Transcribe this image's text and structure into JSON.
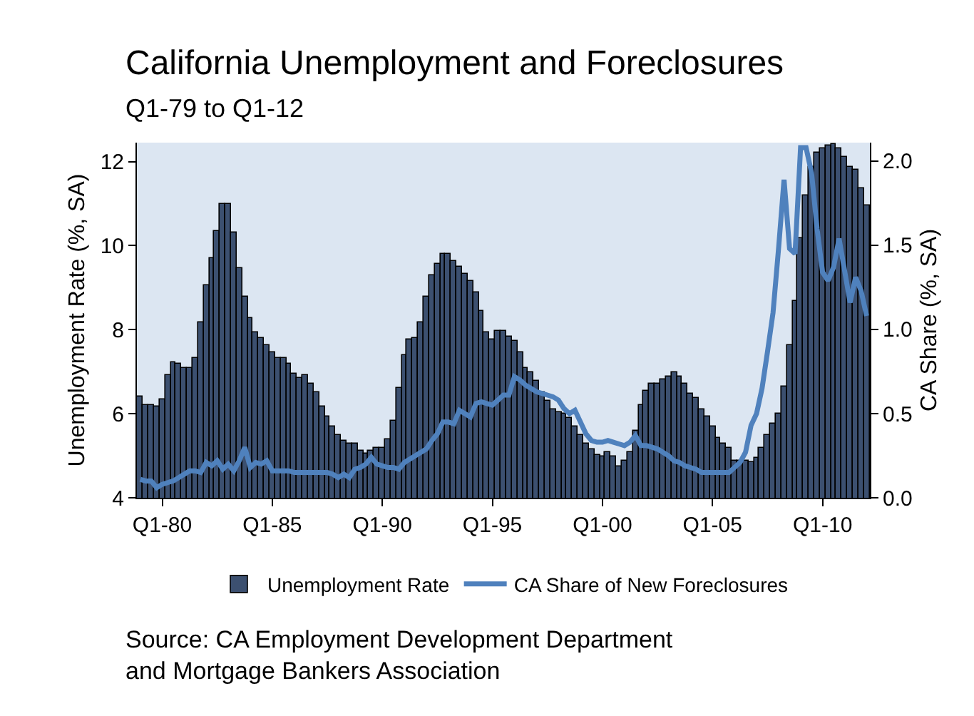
{
  "chart_data": {
    "type": "bar",
    "title": "California Unemployment and Foreclosures",
    "subtitle": "Q1-79 to Q1-12",
    "ylabel": "Unemployment Rate (%, SA)",
    "y2label": "CA Share (%, SA)",
    "categories": [
      null,
      null,
      null,
      null,
      "Q1-80",
      null,
      null,
      null,
      null,
      null,
      null,
      null,
      null,
      null,
      null,
      null,
      null,
      null,
      null,
      null,
      null,
      null,
      null,
      null,
      "Q1-85",
      null,
      null,
      null,
      null,
      null,
      null,
      null,
      null,
      null,
      null,
      null,
      null,
      null,
      null,
      null,
      null,
      null,
      null,
      null,
      "Q1-90",
      null,
      null,
      null,
      null,
      null,
      null,
      null,
      null,
      null,
      null,
      null,
      null,
      null,
      null,
      null,
      null,
      null,
      null,
      null,
      "Q1-95",
      null,
      null,
      null,
      null,
      null,
      null,
      null,
      null,
      null,
      null,
      null,
      null,
      null,
      null,
      null,
      null,
      null,
      null,
      null,
      "Q1-00",
      null,
      null,
      null,
      null,
      null,
      null,
      null,
      null,
      null,
      null,
      null,
      null,
      null,
      null,
      null,
      null,
      null,
      null,
      null,
      "Q1-05",
      null,
      null,
      null,
      null,
      null,
      null,
      null,
      null,
      null,
      null,
      null,
      null,
      null,
      null,
      null,
      null,
      null,
      null,
      null,
      "Q1-10",
      null,
      null,
      null,
      null,
      null,
      null,
      null,
      null
    ],
    "ylim": [
      4,
      12.45
    ],
    "yticks": [
      4,
      6,
      8,
      10,
      12
    ],
    "y2lim": [
      0,
      2.11
    ],
    "y2ticks": [
      {
        "value": 0,
        "label": "0.0"
      },
      {
        "value": 0.5,
        "label": "0.5"
      },
      {
        "value": 1,
        "label": "1.0"
      },
      {
        "value": 1.5,
        "label": "1.5"
      },
      {
        "value": 2,
        "label": "2.0"
      }
    ],
    "series": [
      {
        "name": "Unemployment Rate",
        "color": "#3c5070",
        "values": [
          6.41,
          6.21,
          6.21,
          6.18,
          6.35,
          6.92,
          7.23,
          7.18,
          7.1,
          7.1,
          7.31,
          8.17,
          9.07,
          9.7,
          10.33,
          10.98,
          10.98,
          10.3,
          9.48,
          8.77,
          8.26,
          7.92,
          7.8,
          7.63,
          7.46,
          7.31,
          7.31,
          7.2,
          6.95,
          6.86,
          6.92,
          6.72,
          6.5,
          6.18,
          5.93,
          5.7,
          5.48,
          5.36,
          5.3,
          5.3,
          5.13,
          5.04,
          5.13,
          5.19,
          5.19,
          5.4,
          5.84,
          6.61,
          7.4,
          7.77,
          7.8,
          8.18,
          8.8,
          9.28,
          9.58,
          9.81,
          9.81,
          9.64,
          9.5,
          9.33,
          9.16,
          8.88,
          8.45,
          7.95,
          7.77,
          7.97,
          7.97,
          7.84,
          7.72,
          7.46,
          7.1,
          6.99,
          6.78,
          6.5,
          6.3,
          6.1,
          6.04,
          5.99,
          5.91,
          5.7,
          5.48,
          5.3,
          5.16,
          5.02,
          5.0,
          5.08,
          5.0,
          4.76,
          4.87,
          5.08,
          5.59,
          6.21,
          6.55,
          6.7,
          6.7,
          6.81,
          6.89,
          6.97,
          6.89,
          6.7,
          6.49,
          6.38,
          6.1,
          5.93,
          5.7,
          5.41,
          5.3,
          5.19,
          4.87,
          4.87,
          4.87,
          4.85,
          4.96,
          5.19,
          5.5,
          5.76,
          6.0,
          6.66,
          7.63,
          8.7,
          10.18,
          11.2,
          11.88,
          12.22,
          12.33,
          12.37,
          12.41,
          12.33,
          12.1,
          11.88,
          11.82,
          11.37,
          10.97
        ]
      },
      {
        "name": "CA Share of New Foreclosures",
        "type": "line",
        "axis": "y2",
        "color": "#4f81bd",
        "values": [
          0.11,
          0.1,
          0.1,
          0.06,
          0.08,
          0.09,
          0.1,
          0.12,
          0.14,
          0.16,
          0.16,
          0.15,
          0.21,
          0.19,
          0.22,
          0.17,
          0.2,
          0.16,
          0.22,
          0.3,
          0.18,
          0.21,
          0.2,
          0.22,
          0.16,
          0.16,
          0.16,
          0.16,
          0.15,
          0.15,
          0.15,
          0.15,
          0.15,
          0.15,
          0.15,
          0.14,
          0.12,
          0.14,
          0.12,
          0.17,
          0.18,
          0.2,
          0.24,
          0.2,
          0.19,
          0.18,
          0.18,
          0.17,
          0.21,
          0.23,
          0.25,
          0.27,
          0.29,
          0.34,
          0.38,
          0.45,
          0.45,
          0.44,
          0.52,
          0.5,
          0.48,
          0.56,
          0.57,
          0.56,
          0.55,
          0.58,
          0.61,
          0.61,
          0.72,
          0.7,
          0.67,
          0.65,
          0.63,
          0.62,
          0.61,
          0.6,
          0.58,
          0.53,
          0.5,
          0.52,
          0.45,
          0.38,
          0.34,
          0.33,
          0.33,
          0.34,
          0.33,
          0.32,
          0.31,
          0.33,
          0.37,
          0.31,
          0.31,
          0.3,
          0.29,
          0.27,
          0.25,
          0.22,
          0.21,
          0.19,
          0.18,
          0.17,
          0.15,
          0.15,
          0.15,
          0.15,
          0.15,
          0.15,
          0.18,
          0.21,
          0.27,
          0.43,
          0.5,
          0.65,
          0.87,
          1.1,
          1.48,
          1.89,
          1.48,
          1.45,
          2.08,
          2.08,
          1.93,
          1.6,
          1.34,
          1.29,
          1.37,
          1.54,
          1.35,
          1.16,
          1.31,
          1.23,
          1.08
        ]
      }
    ],
    "legend": "bottom",
    "grid": false,
    "annotations": [
      "Source: CA Employment Development Department\nand Mortgage Bankers Association"
    ]
  }
}
